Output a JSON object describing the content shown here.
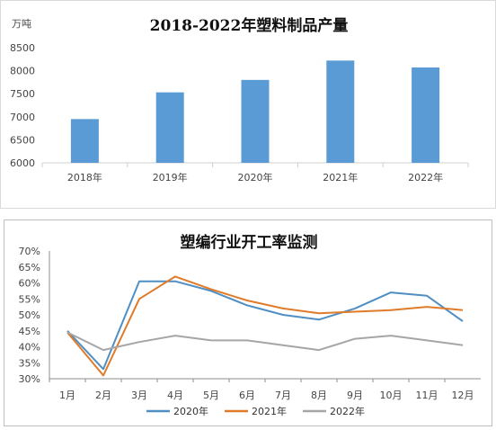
{
  "chart_data": [
    {
      "type": "bar",
      "title": "2018-2022年塑料制品产量",
      "unit_label": "万吨",
      "categories": [
        "2018年",
        "2019年",
        "2020年",
        "2021年",
        "2022年"
      ],
      "values": [
        6950,
        7530,
        7800,
        8220,
        8070
      ],
      "ylim": [
        6000,
        8500
      ],
      "yticks": [
        6000,
        6500,
        7000,
        7500,
        8000,
        8500
      ],
      "grid": false,
      "legend": "none",
      "color": "#5b9bd5"
    },
    {
      "type": "line",
      "title": "塑编行业开工率监测",
      "categories": [
        "1月",
        "2月",
        "3月",
        "4月",
        "5月",
        "6月",
        "7月",
        "8月",
        "9月",
        "10月",
        "11月",
        "12月"
      ],
      "ylim": [
        30,
        70
      ],
      "yticks": [
        "30%",
        "35%",
        "40%",
        "45%",
        "50%",
        "55%",
        "60%",
        "65%",
        "70%"
      ],
      "grid": false,
      "legend": "bottom",
      "series": [
        {
          "name": "2020年",
          "color": "#4f8fc4",
          "values": [
            45.0,
            33.0,
            60.5,
            60.5,
            57.5,
            53.0,
            50.0,
            48.5,
            52.0,
            57.0,
            56.0,
            48.0
          ]
        },
        {
          "name": "2021年",
          "color": "#e07b2a",
          "values": [
            44.5,
            31.0,
            55.0,
            62.0,
            58.0,
            54.5,
            52.0,
            50.5,
            51.0,
            51.5,
            52.5,
            51.5
          ]
        },
        {
          "name": "2022年",
          "color": "#a6a6a6",
          "values": [
            44.5,
            39.0,
            41.5,
            43.5,
            42.0,
            42.0,
            40.5,
            39.0,
            42.5,
            43.5,
            42.0,
            40.5
          ]
        }
      ]
    }
  ]
}
